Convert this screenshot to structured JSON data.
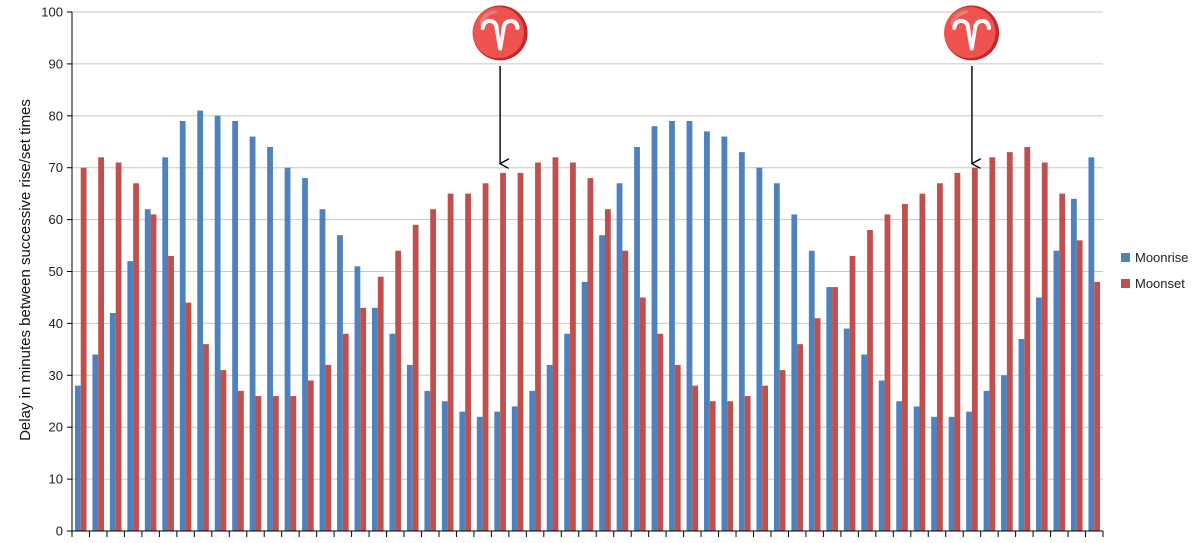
{
  "chart_data": {
    "type": "bar",
    "title": "",
    "xlabel": "",
    "ylabel": "Delay in minutes between successive rise/set times",
    "ylim": [
      0,
      100
    ],
    "yticks": [
      0,
      10,
      20,
      30,
      40,
      50,
      60,
      70,
      80,
      90,
      100
    ],
    "grid": true,
    "legend_position": "right",
    "series": [
      {
        "name": "Moonrise",
        "color": "#4F81BD",
        "values": [
          28,
          34,
          42,
          52,
          62,
          72,
          79,
          81,
          80,
          79,
          76,
          74,
          70,
          68,
          62,
          57,
          51,
          43,
          38,
          32,
          27,
          25,
          23,
          22,
          23,
          24,
          27,
          32,
          38,
          48,
          57,
          67,
          74,
          78,
          79,
          79,
          77,
          76,
          73,
          70,
          67,
          61,
          54,
          47,
          39,
          34,
          29,
          25,
          24,
          22,
          22,
          23,
          27,
          30,
          37,
          45,
          54,
          64,
          72
        ]
      },
      {
        "name": "Moonset",
        "color": "#C0504D",
        "values": [
          70,
          72,
          71,
          67,
          61,
          53,
          44,
          36,
          31,
          27,
          26,
          26,
          26,
          29,
          32,
          38,
          43,
          49,
          54,
          59,
          62,
          65,
          65,
          67,
          69,
          69,
          71,
          72,
          71,
          68,
          62,
          54,
          45,
          38,
          32,
          28,
          25,
          25,
          26,
          28,
          31,
          36,
          41,
          47,
          53,
          58,
          61,
          63,
          65,
          67,
          69,
          70,
          72,
          73,
          74,
          71,
          65,
          56,
          48
        ]
      }
    ],
    "annotations": [
      {
        "symbol": "♈",
        "category_index": 24,
        "arrow_to_value": 70
      },
      {
        "symbol": "♈",
        "category_index": 51,
        "arrow_to_value": 70
      }
    ]
  }
}
